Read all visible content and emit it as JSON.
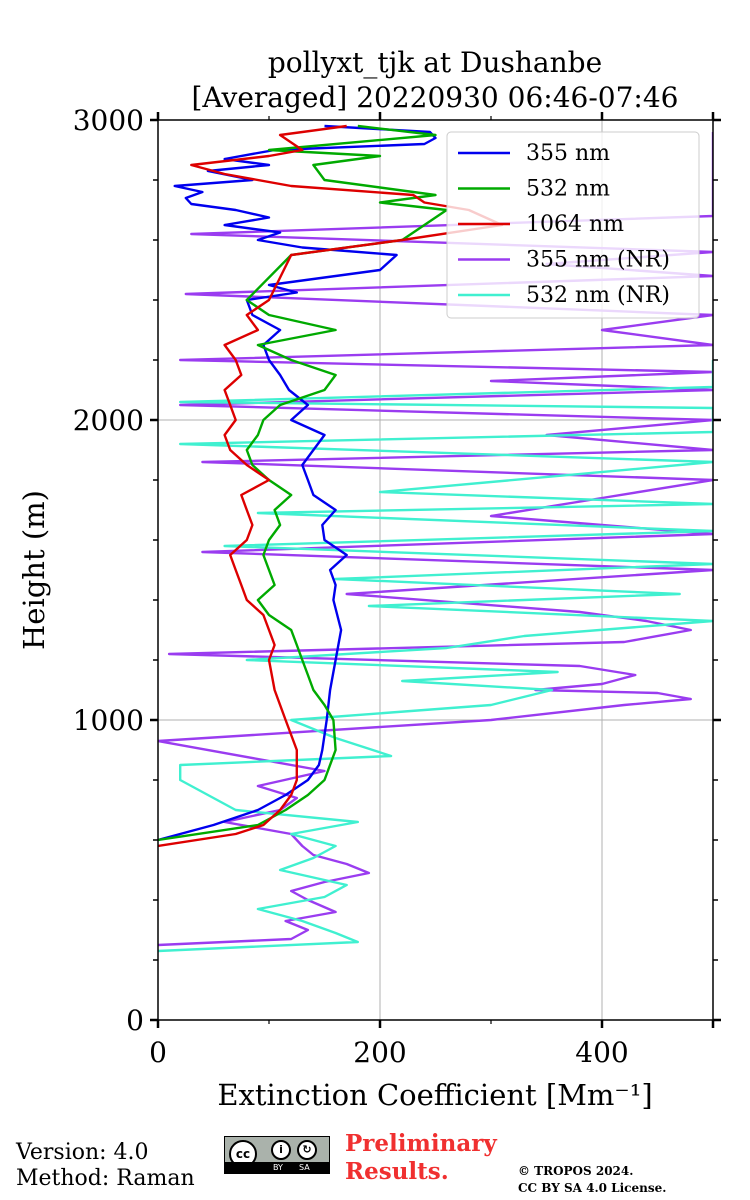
{
  "chart_data": {
    "type": "line",
    "title": "pollyxt_tjk at Dushanbe",
    "subtitle": "[Averaged] 20220930 06:46-07:46",
    "xlabel": "Extinction Coefficient [Mm⁻¹]",
    "ylabel": "Height (m)",
    "xlim": [
      0,
      500
    ],
    "ylim": [
      0,
      3000
    ],
    "xticks": [
      "0",
      "200",
      "400"
    ],
    "xtick_values": [
      0,
      200,
      400
    ],
    "yticks": [
      "0",
      "1000",
      "2000",
      "3000"
    ],
    "ytick_values": [
      0,
      1000,
      2000,
      3000
    ],
    "grid": true,
    "legend_position": "top-right",
    "series": [
      {
        "name": "355 nm",
        "color": "#0000ee",
        "x": [
          0,
          50,
          90,
          115,
          135,
          145,
          148,
          152,
          155,
          160,
          165,
          158,
          160,
          155,
          170,
          150,
          148,
          160,
          140,
          135,
          130,
          140,
          150,
          120,
          135,
          118,
          110,
          100,
          95,
          110,
          85,
          80,
          125,
          100,
          150,
          200,
          215,
          130,
          90,
          110,
          60,
          100,
          70,
          30,
          25,
          40,
          15,
          85,
          45,
          100,
          60,
          105,
          240,
          250,
          245,
          150
        ],
        "y": [
          600,
          650,
          700,
          750,
          800,
          850,
          900,
          1000,
          1100,
          1200,
          1300,
          1400,
          1450,
          1500,
          1550,
          1600,
          1650,
          1700,
          1750,
          1800,
          1850,
          1900,
          1950,
          2000,
          2050,
          2100,
          2150,
          2200,
          2250,
          2300,
          2350,
          2400,
          2425,
          2450,
          2475,
          2500,
          2550,
          2575,
          2600,
          2625,
          2650,
          2675,
          2700,
          2720,
          2740,
          2760,
          2780,
          2800,
          2830,
          2850,
          2870,
          2900,
          2920,
          2940,
          2960,
          2980
        ]
      },
      {
        "name": "532 nm",
        "color": "#00aa00",
        "x": [
          0,
          90,
          115,
          135,
          150,
          160,
          158,
          150,
          140,
          135,
          130,
          125,
          120,
          100,
          90,
          105,
          100,
          95,
          100,
          110,
          105,
          120,
          100,
          85,
          80,
          90,
          95,
          110,
          150,
          160,
          120,
          90,
          160,
          130,
          100,
          80,
          120,
          220,
          240,
          260,
          200,
          250,
          150,
          140,
          200,
          100,
          250,
          180
        ],
        "y": [
          600,
          650,
          700,
          750,
          800,
          900,
          1000,
          1050,
          1100,
          1150,
          1200,
          1250,
          1300,
          1350,
          1400,
          1450,
          1500,
          1550,
          1600,
          1650,
          1700,
          1750,
          1800,
          1850,
          1900,
          1950,
          2000,
          2050,
          2100,
          2150,
          2200,
          2250,
          2300,
          2325,
          2350,
          2400,
          2550,
          2600,
          2650,
          2700,
          2725,
          2750,
          2800,
          2850,
          2880,
          2900,
          2950,
          2980
        ]
      },
      {
        "name": "1064 nm",
        "color": "#dd0000",
        "x": [
          0,
          70,
          95,
          110,
          120,
          125,
          125,
          115,
          105,
          100,
          105,
          100,
          95,
          80,
          75,
          70,
          65,
          80,
          85,
          80,
          75,
          100,
          80,
          65,
          60,
          70,
          65,
          60,
          75,
          70,
          60,
          90,
          80,
          100,
          120,
          220,
          310,
          280,
          240,
          230,
          120,
          60,
          30,
          100,
          130,
          110,
          170
        ],
        "y": [
          580,
          620,
          650,
          700,
          750,
          800,
          900,
          1000,
          1100,
          1200,
          1250,
          1300,
          1350,
          1400,
          1450,
          1500,
          1550,
          1600,
          1650,
          1700,
          1750,
          1800,
          1850,
          1900,
          1950,
          2000,
          2050,
          2100,
          2150,
          2200,
          2250,
          2300,
          2350,
          2400,
          2550,
          2600,
          2650,
          2700,
          2725,
          2750,
          2780,
          2820,
          2850,
          2880,
          2900,
          2950,
          2980
        ]
      },
      {
        "name": "355 nm (NR)",
        "color": "#9a3cf0",
        "x": [
          0,
          120,
          135,
          115,
          160,
          135,
          120,
          150,
          190,
          170,
          140,
          130,
          120,
          60,
          110,
          125,
          90,
          150,
          0,
          300,
          420,
          480,
          450,
          340,
          400,
          430,
          380,
          10,
          420,
          480,
          440,
          380,
          170,
          500,
          40,
          500,
          300,
          400,
          500,
          40,
          500,
          350,
          500,
          20,
          500,
          300,
          500,
          20,
          500,
          400,
          500,
          25,
          500,
          350,
          500,
          30,
          500,
          500,
          500,
          500,
          500,
          500
        ],
        "y": [
          250,
          270,
          300,
          330,
          360,
          400,
          430,
          460,
          490,
          520,
          550,
          580,
          620,
          660,
          700,
          740,
          780,
          830,
          930,
          1000,
          1050,
          1070,
          1090,
          1100,
          1120,
          1150,
          1180,
          1220,
          1260,
          1300,
          1330,
          1360,
          1420,
          1500,
          1560,
          1620,
          1680,
          1740,
          1800,
          1860,
          1900,
          1950,
          2000,
          2050,
          2100,
          2130,
          2160,
          2200,
          2250,
          2300,
          2350,
          2420,
          2480,
          2520,
          2560,
          2620,
          2680,
          2720,
          2760,
          2850,
          2920,
          2960
        ]
      },
      {
        "name": "532 nm (NR)",
        "color": "#40f0d0",
        "x": [
          0,
          180,
          160,
          130,
          90,
          150,
          170,
          110,
          140,
          160,
          120,
          180,
          70,
          40,
          20,
          20,
          210,
          160,
          120,
          300,
          355,
          220,
          360,
          80,
          260,
          330,
          500,
          190,
          470,
          160,
          500,
          60,
          500,
          90,
          500,
          200,
          500,
          20,
          500,
          500,
          500,
          500,
          20,
          500,
          500,
          500,
          500
        ],
        "y": [
          230,
          260,
          290,
          330,
          370,
          410,
          450,
          500,
          540,
          580,
          620,
          660,
          700,
          760,
          800,
          850,
          880,
          940,
          1000,
          1050,
          1100,
          1130,
          1160,
          1200,
          1240,
          1280,
          1330,
          1380,
          1420,
          1470,
          1520,
          1580,
          1630,
          1690,
          1720,
          1760,
          1860,
          1920,
          1960,
          1990,
          2010,
          2040,
          2060,
          2110,
          2150,
          2180,
          2200
        ]
      }
    ]
  },
  "footer": {
    "version": "Version: 4.0",
    "method": "Method: Raman",
    "preliminary_line1": "Preliminary",
    "preliminary_line2": "Results.",
    "copyright_line1": "© TROPOS 2024.",
    "copyright_line2": "CC BY SA 4.0 License."
  },
  "license_badge": {
    "cc": "cc",
    "by": "BY",
    "sa": "SA",
    "by_icon": "person-icon",
    "sa_icon": "share-alike-icon"
  }
}
